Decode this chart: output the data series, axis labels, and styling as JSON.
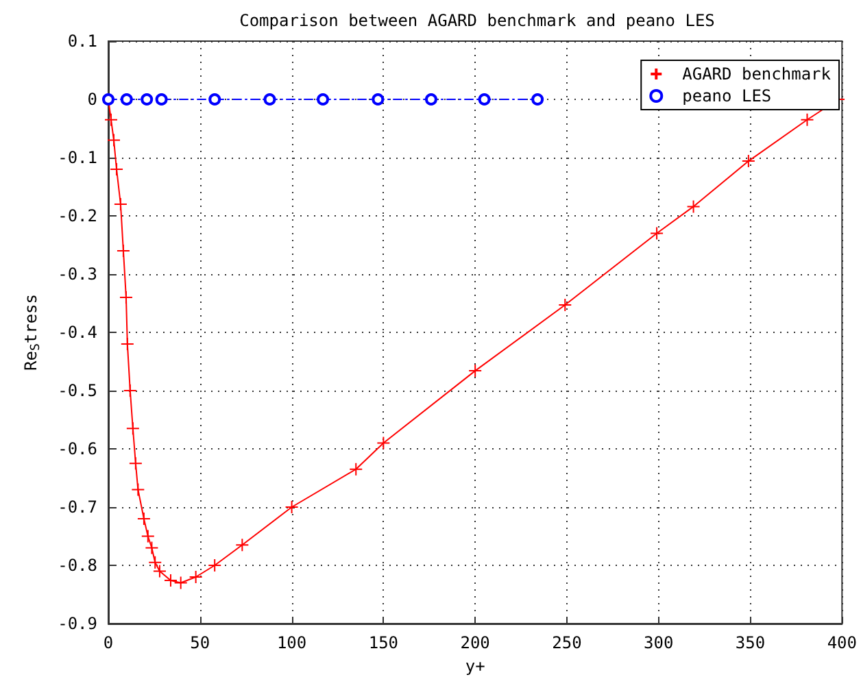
{
  "chart_data": {
    "type": "line",
    "title": "Comparison between AGARD benchmark and peano LES",
    "xlabel": "y+",
    "ylabel": "Re$_{S}$tress",
    "xlim": [
      0,
      400
    ],
    "xticks": [
      0,
      50,
      100,
      150,
      200,
      250,
      300,
      350,
      400
    ],
    "ylim": [
      -0.9,
      0.1
    ],
    "yticks": [
      0.1,
      0,
      -0.1,
      -0.2,
      -0.3,
      -0.4,
      -0.5,
      -0.6,
      -0.7,
      -0.8,
      -0.9
    ],
    "grid": true,
    "legend": "top right",
    "series": [
      {
        "name": "AGARD benchmark",
        "color": "#ff0000",
        "marker": "cross",
        "line_style": "solid",
        "x": [
          0,
          1.5,
          3,
          4.5,
          6.7,
          8.2,
          9.7,
          10.4,
          11.9,
          13.4,
          14.9,
          16.2,
          19.4,
          21.6,
          23.7,
          25.5,
          28,
          34,
          39.5,
          47.7,
          58,
          73,
          100,
          135,
          150,
          200,
          249,
          299,
          319,
          349,
          381,
          398
        ],
        "values": [
          0,
          -0.035,
          -0.07,
          -0.12,
          -0.18,
          -0.26,
          -0.34,
          -0.42,
          -0.5,
          -0.565,
          -0.625,
          -0.67,
          -0.72,
          -0.75,
          -0.77,
          -0.795,
          -0.81,
          -0.826,
          -0.83,
          -0.82,
          -0.8,
          -0.765,
          -0.7,
          -0.635,
          -0.59,
          -0.466,
          -0.353,
          -0.23,
          -0.184,
          -0.106,
          -0.035,
          0
        ]
      },
      {
        "name": "peano LES",
        "color": "#0000ff",
        "marker": "circle",
        "line_style": "dashed",
        "x": [
          0,
          10,
          21,
          29,
          58,
          88,
          117,
          147,
          176,
          205,
          234
        ],
        "values": [
          0,
          0,
          0,
          0,
          0,
          0,
          0,
          0,
          0,
          0,
          0
        ]
      }
    ]
  }
}
